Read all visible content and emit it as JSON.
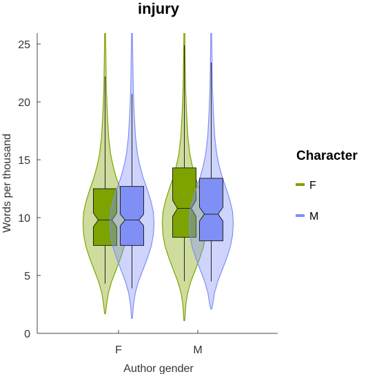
{
  "chart_data": {
    "type": "violin",
    "title": "injury",
    "xlabel": "Author gender",
    "ylabel": "Words per thousand",
    "categories": [
      "F",
      "M"
    ],
    "ylim": [
      0,
      26
    ],
    "yticks": [
      0,
      5,
      10,
      15,
      20,
      25
    ],
    "grid": false,
    "legend": {
      "title": "Character",
      "position": "right",
      "entries": [
        {
          "label": "F",
          "color": "#7da300"
        },
        {
          "label": "M",
          "color": "#7f8ff5"
        }
      ]
    },
    "series": [
      {
        "name": "F",
        "color": "#7da300",
        "groups": [
          {
            "category": "F",
            "min": 4.3,
            "q1": 7.6,
            "median": 9.8,
            "q3": 12.5,
            "max": 22.2,
            "notch": [
              9.2,
              10.4
            ],
            "violin": {
              "y": [
                1.7,
                2.5,
                3.5,
                4.5,
                5.5,
                6.5,
                7.5,
                8.5,
                9.5,
                10.5,
                11.5,
                12.5,
                13.5,
                14.5,
                15.5,
                17,
                19,
                21,
                23,
                26
              ],
              "density": [
                0.02,
                0.07,
                0.15,
                0.3,
                0.5,
                0.7,
                0.87,
                0.97,
                1.0,
                0.97,
                0.85,
                0.68,
                0.5,
                0.36,
                0.25,
                0.16,
                0.1,
                0.06,
                0.04,
                0.02
              ]
            }
          },
          {
            "category": "M",
            "min": 4.5,
            "q1": 8.3,
            "median": 10.8,
            "q3": 14.3,
            "max": 24.9,
            "notch": [
              10.1,
              11.5
            ],
            "violin": {
              "y": [
                1.1,
                2.5,
                3.5,
                4.5,
                5.5,
                6.5,
                7.5,
                8.5,
                9.5,
                10.5,
                11.5,
                12.5,
                13.5,
                14.5,
                15.5,
                17,
                19,
                21,
                23,
                26
              ],
              "density": [
                0.02,
                0.07,
                0.15,
                0.3,
                0.5,
                0.7,
                0.87,
                0.97,
                1.0,
                0.97,
                0.85,
                0.68,
                0.5,
                0.36,
                0.25,
                0.16,
                0.1,
                0.06,
                0.04,
                0.02
              ]
            }
          }
        ]
      },
      {
        "name": "M",
        "color": "#7f8ff5",
        "groups": [
          {
            "category": "F",
            "min": 3.9,
            "q1": 7.6,
            "median": 9.8,
            "q3": 12.7,
            "max": 20.7,
            "notch": [
              9.3,
              10.3
            ],
            "violin": {
              "y": [
                1.3,
                2.5,
                3.5,
                4.5,
                5.5,
                6.5,
                7.5,
                8.5,
                9.5,
                10.5,
                11.5,
                12.5,
                13.5,
                14.5,
                15.5,
                17,
                19,
                21,
                23,
                26
              ],
              "density": [
                0.02,
                0.07,
                0.15,
                0.3,
                0.5,
                0.7,
                0.87,
                0.97,
                1.0,
                0.97,
                0.85,
                0.68,
                0.5,
                0.36,
                0.25,
                0.16,
                0.1,
                0.06,
                0.04,
                0.02
              ]
            }
          },
          {
            "category": "M",
            "min": 4.5,
            "q1": 8.0,
            "median": 10.3,
            "q3": 13.4,
            "max": 23.4,
            "notch": [
              9.7,
              10.9
            ],
            "violin": {
              "y": [
                2.1,
                2.5,
                3.5,
                4.5,
                5.5,
                6.5,
                7.5,
                8.5,
                9.5,
                10.5,
                11.5,
                12.5,
                13.5,
                14.5,
                15.5,
                17,
                19,
                21,
                23,
                26
              ],
              "density": [
                0.02,
                0.07,
                0.15,
                0.3,
                0.5,
                0.7,
                0.87,
                0.97,
                1.0,
                0.97,
                0.85,
                0.68,
                0.5,
                0.36,
                0.25,
                0.16,
                0.1,
                0.06,
                0.04,
                0.02
              ]
            }
          }
        ]
      }
    ]
  }
}
